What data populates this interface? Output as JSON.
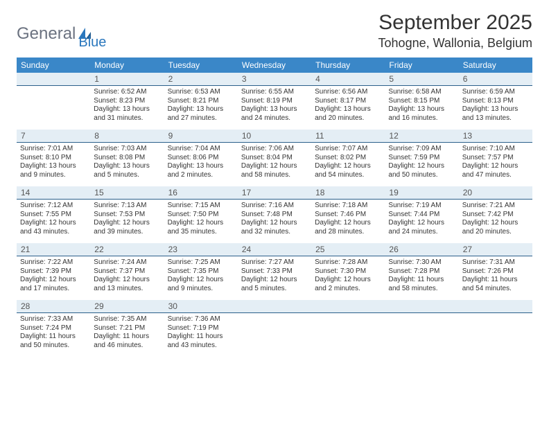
{
  "logo": {
    "text_gray": "General",
    "text_blue": "Blue"
  },
  "title": "September 2025",
  "location": "Tohogne, Wallonia, Belgium",
  "colors": {
    "header_bg": "#3a87c8",
    "daynum_bg": "#e4eef5",
    "daynum_border": "#2a5f8a",
    "logo_gray": "#6b7280",
    "logo_blue": "#2a77bd"
  },
  "days_of_week": [
    "Sunday",
    "Monday",
    "Tuesday",
    "Wednesday",
    "Thursday",
    "Friday",
    "Saturday"
  ],
  "weeks": [
    {
      "nums": [
        "",
        "1",
        "2",
        "3",
        "4",
        "5",
        "6"
      ],
      "cells": [
        {
          "lines": []
        },
        {
          "lines": [
            "Sunrise: 6:52 AM",
            "Sunset: 8:23 PM",
            "Daylight: 13 hours",
            "and 31 minutes."
          ]
        },
        {
          "lines": [
            "Sunrise: 6:53 AM",
            "Sunset: 8:21 PM",
            "Daylight: 13 hours",
            "and 27 minutes."
          ]
        },
        {
          "lines": [
            "Sunrise: 6:55 AM",
            "Sunset: 8:19 PM",
            "Daylight: 13 hours",
            "and 24 minutes."
          ]
        },
        {
          "lines": [
            "Sunrise: 6:56 AM",
            "Sunset: 8:17 PM",
            "Daylight: 13 hours",
            "and 20 minutes."
          ]
        },
        {
          "lines": [
            "Sunrise: 6:58 AM",
            "Sunset: 8:15 PM",
            "Daylight: 13 hours",
            "and 16 minutes."
          ]
        },
        {
          "lines": [
            "Sunrise: 6:59 AM",
            "Sunset: 8:13 PM",
            "Daylight: 13 hours",
            "and 13 minutes."
          ]
        }
      ]
    },
    {
      "nums": [
        "7",
        "8",
        "9",
        "10",
        "11",
        "12",
        "13"
      ],
      "cells": [
        {
          "lines": [
            "Sunrise: 7:01 AM",
            "Sunset: 8:10 PM",
            "Daylight: 13 hours",
            "and 9 minutes."
          ]
        },
        {
          "lines": [
            "Sunrise: 7:03 AM",
            "Sunset: 8:08 PM",
            "Daylight: 13 hours",
            "and 5 minutes."
          ]
        },
        {
          "lines": [
            "Sunrise: 7:04 AM",
            "Sunset: 8:06 PM",
            "Daylight: 13 hours",
            "and 2 minutes."
          ]
        },
        {
          "lines": [
            "Sunrise: 7:06 AM",
            "Sunset: 8:04 PM",
            "Daylight: 12 hours",
            "and 58 minutes."
          ]
        },
        {
          "lines": [
            "Sunrise: 7:07 AM",
            "Sunset: 8:02 PM",
            "Daylight: 12 hours",
            "and 54 minutes."
          ]
        },
        {
          "lines": [
            "Sunrise: 7:09 AM",
            "Sunset: 7:59 PM",
            "Daylight: 12 hours",
            "and 50 minutes."
          ]
        },
        {
          "lines": [
            "Sunrise: 7:10 AM",
            "Sunset: 7:57 PM",
            "Daylight: 12 hours",
            "and 47 minutes."
          ]
        }
      ]
    },
    {
      "nums": [
        "14",
        "15",
        "16",
        "17",
        "18",
        "19",
        "20"
      ],
      "cells": [
        {
          "lines": [
            "Sunrise: 7:12 AM",
            "Sunset: 7:55 PM",
            "Daylight: 12 hours",
            "and 43 minutes."
          ]
        },
        {
          "lines": [
            "Sunrise: 7:13 AM",
            "Sunset: 7:53 PM",
            "Daylight: 12 hours",
            "and 39 minutes."
          ]
        },
        {
          "lines": [
            "Sunrise: 7:15 AM",
            "Sunset: 7:50 PM",
            "Daylight: 12 hours",
            "and 35 minutes."
          ]
        },
        {
          "lines": [
            "Sunrise: 7:16 AM",
            "Sunset: 7:48 PM",
            "Daylight: 12 hours",
            "and 32 minutes."
          ]
        },
        {
          "lines": [
            "Sunrise: 7:18 AM",
            "Sunset: 7:46 PM",
            "Daylight: 12 hours",
            "and 28 minutes."
          ]
        },
        {
          "lines": [
            "Sunrise: 7:19 AM",
            "Sunset: 7:44 PM",
            "Daylight: 12 hours",
            "and 24 minutes."
          ]
        },
        {
          "lines": [
            "Sunrise: 7:21 AM",
            "Sunset: 7:42 PM",
            "Daylight: 12 hours",
            "and 20 minutes."
          ]
        }
      ]
    },
    {
      "nums": [
        "21",
        "22",
        "23",
        "24",
        "25",
        "26",
        "27"
      ],
      "cells": [
        {
          "lines": [
            "Sunrise: 7:22 AM",
            "Sunset: 7:39 PM",
            "Daylight: 12 hours",
            "and 17 minutes."
          ]
        },
        {
          "lines": [
            "Sunrise: 7:24 AM",
            "Sunset: 7:37 PM",
            "Daylight: 12 hours",
            "and 13 minutes."
          ]
        },
        {
          "lines": [
            "Sunrise: 7:25 AM",
            "Sunset: 7:35 PM",
            "Daylight: 12 hours",
            "and 9 minutes."
          ]
        },
        {
          "lines": [
            "Sunrise: 7:27 AM",
            "Sunset: 7:33 PM",
            "Daylight: 12 hours",
            "and 5 minutes."
          ]
        },
        {
          "lines": [
            "Sunrise: 7:28 AM",
            "Sunset: 7:30 PM",
            "Daylight: 12 hours",
            "and 2 minutes."
          ]
        },
        {
          "lines": [
            "Sunrise: 7:30 AM",
            "Sunset: 7:28 PM",
            "Daylight: 11 hours",
            "and 58 minutes."
          ]
        },
        {
          "lines": [
            "Sunrise: 7:31 AM",
            "Sunset: 7:26 PM",
            "Daylight: 11 hours",
            "and 54 minutes."
          ]
        }
      ]
    },
    {
      "nums": [
        "28",
        "29",
        "30",
        "",
        "",
        "",
        ""
      ],
      "cells": [
        {
          "lines": [
            "Sunrise: 7:33 AM",
            "Sunset: 7:24 PM",
            "Daylight: 11 hours",
            "and 50 minutes."
          ]
        },
        {
          "lines": [
            "Sunrise: 7:35 AM",
            "Sunset: 7:21 PM",
            "Daylight: 11 hours",
            "and 46 minutes."
          ]
        },
        {
          "lines": [
            "Sunrise: 7:36 AM",
            "Sunset: 7:19 PM",
            "Daylight: 11 hours",
            "and 43 minutes."
          ]
        },
        {
          "lines": []
        },
        {
          "lines": []
        },
        {
          "lines": []
        },
        {
          "lines": []
        }
      ]
    }
  ]
}
